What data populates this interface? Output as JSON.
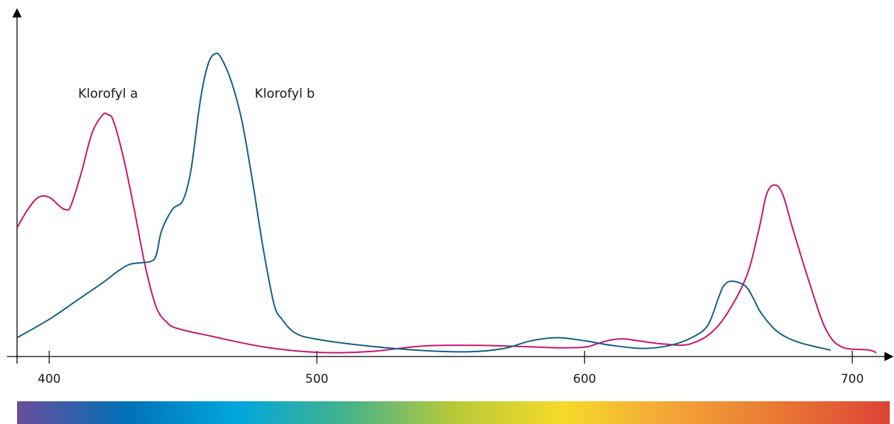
{
  "chart_data": {
    "type": "line",
    "title": "",
    "xlabel": "",
    "ylabel": "",
    "xlim": [
      388,
      714
    ],
    "ylim": [
      0,
      100
    ],
    "grid": false,
    "x_ticks": [
      400,
      500,
      600,
      700
    ],
    "x_tick_labels": [
      "400",
      "500",
      "600",
      "700"
    ],
    "series": [
      {
        "name": "Klorofyl a",
        "color": "#c8126b",
        "points": [
          [
            388,
            41
          ],
          [
            392,
            47
          ],
          [
            396,
            51
          ],
          [
            400,
            51
          ],
          [
            404,
            48
          ],
          [
            406,
            47
          ],
          [
            408,
            48
          ],
          [
            412,
            59
          ],
          [
            416,
            72
          ],
          [
            420,
            78
          ],
          [
            422,
            78
          ],
          [
            424,
            76
          ],
          [
            428,
            63
          ],
          [
            432,
            46
          ],
          [
            436,
            28
          ],
          [
            440,
            15
          ],
          [
            444,
            10
          ],
          [
            448,
            8
          ],
          [
            460,
            5.6
          ],
          [
            480,
            2
          ],
          [
            500,
            0.2
          ],
          [
            520,
            0.5
          ],
          [
            540,
            2.3
          ],
          [
            560,
            2.5
          ],
          [
            580,
            2
          ],
          [
            590,
            1.7
          ],
          [
            600,
            1.9
          ],
          [
            605,
            3.1
          ],
          [
            610,
            4.3
          ],
          [
            615,
            4.6
          ],
          [
            620,
            4
          ],
          [
            630,
            2.9
          ],
          [
            640,
            3.1
          ],
          [
            650,
            9
          ],
          [
            660,
            24
          ],
          [
            665,
            40
          ],
          [
            668,
            52
          ],
          [
            671,
            55
          ],
          [
            674,
            52
          ],
          [
            678,
            40
          ],
          [
            684,
            23
          ],
          [
            690,
            8
          ],
          [
            696,
            2
          ],
          [
            706,
            1
          ],
          [
            709,
            0.1
          ]
        ]
      },
      {
        "name": "Klorofyl b",
        "color": "#0f5e82",
        "points": [
          [
            388,
            5
          ],
          [
            400,
            11
          ],
          [
            410,
            17
          ],
          [
            420,
            23
          ],
          [
            426,
            27
          ],
          [
            430,
            29
          ],
          [
            434,
            29.5
          ],
          [
            438,
            30
          ],
          [
            440,
            32
          ],
          [
            442,
            40
          ],
          [
            446,
            47
          ],
          [
            450,
            50
          ],
          [
            453,
            60
          ],
          [
            456,
            80
          ],
          [
            458,
            90
          ],
          [
            460,
            96
          ],
          [
            462,
            98
          ],
          [
            464,
            97
          ],
          [
            468,
            89
          ],
          [
            472,
            76
          ],
          [
            476,
            56
          ],
          [
            480,
            34
          ],
          [
            484,
            16
          ],
          [
            487,
            11
          ],
          [
            492,
            6.5
          ],
          [
            500,
            4.5
          ],
          [
            520,
            2.2
          ],
          [
            540,
            0.8
          ],
          [
            557,
            0.4
          ],
          [
            570,
            1.5
          ],
          [
            580,
            4
          ],
          [
            590,
            5
          ],
          [
            600,
            4
          ],
          [
            610,
            2.5
          ],
          [
            622,
            1.5
          ],
          [
            632,
            2.5
          ],
          [
            640,
            5
          ],
          [
            646,
            9
          ],
          [
            650,
            18
          ],
          [
            652,
            22
          ],
          [
            655,
            23.5
          ],
          [
            660,
            22
          ],
          [
            663,
            18
          ],
          [
            666,
            13
          ],
          [
            672,
            7
          ],
          [
            680,
            3.5
          ],
          [
            692,
            0.9
          ]
        ]
      }
    ],
    "annotations": [
      {
        "text": "Klorofyl a",
        "x": 422,
        "y": 85
      },
      {
        "text": "Klorofyl b",
        "x": 488,
        "y": 85
      }
    ],
    "spectrum_bar": {
      "colors": [
        "#6b4d9c",
        "#0071b7",
        "#00a6df",
        "#43b28c",
        "#b7c93a",
        "#f6da29",
        "#f3a438",
        "#e97733",
        "#dd4338"
      ]
    }
  }
}
